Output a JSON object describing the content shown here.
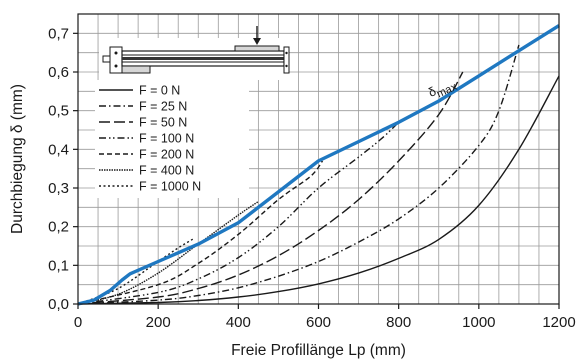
{
  "chart_data": {
    "type": "line",
    "xlabel": "Freie Profillänge Lp (mm)",
    "ylabel": "Durchbiegung δ (mm)",
    "xlim": [
      0,
      1200
    ],
    "ylim": [
      0,
      0.75
    ],
    "x_ticks": [
      0,
      200,
      400,
      600,
      800,
      1000,
      1200
    ],
    "x_tick_labels": [
      "0",
      "200",
      "400",
      "600",
      "800",
      "1000",
      "1200"
    ],
    "y_ticks": [
      0,
      0.1,
      0.2,
      0.3,
      0.4,
      0.5,
      0.6,
      0.7
    ],
    "y_tick_labels": [
      "0,0",
      "0,1",
      "0,2",
      "0,3",
      "0,4",
      "0,5",
      "0,6",
      "0,7"
    ],
    "grid": true,
    "legend_position": "top-left",
    "colors": {
      "max_line": "#1f78c1",
      "curves": "#1a1a1a",
      "grid": "#9a9a9a"
    },
    "max_curve": {
      "annotation_main": "δ",
      "annotation_sub": "max",
      "annotation_at": [
        880,
        0.535
      ],
      "x": [
        0,
        40,
        80,
        110,
        130,
        200,
        300,
        400,
        500,
        600,
        700,
        800,
        900,
        1000,
        1100,
        1200
      ],
      "y": [
        0.0,
        0.01,
        0.035,
        0.062,
        0.078,
        0.11,
        0.155,
        0.21,
        0.29,
        0.37,
        0.42,
        0.47,
        0.525,
        0.59,
        0.655,
        0.72
      ]
    },
    "series": [
      {
        "name": "F = 0 N",
        "dash": "solid",
        "x": [
          0,
          200,
          300,
          400,
          500,
          600,
          700,
          800,
          900,
          1000,
          1100,
          1200
        ],
        "y": [
          0.0,
          0.004,
          0.009,
          0.018,
          0.032,
          0.052,
          0.08,
          0.118,
          0.167,
          0.255,
          0.4,
          0.59
        ]
      },
      {
        "name": "F = 25 N",
        "dash": "dashdot",
        "x": [
          0,
          200,
          300,
          400,
          500,
          600,
          700,
          800,
          900,
          1000,
          1050,
          1100
        ],
        "y": [
          0.0,
          0.01,
          0.022,
          0.042,
          0.072,
          0.11,
          0.16,
          0.22,
          0.3,
          0.41,
          0.5,
          0.67
        ]
      },
      {
        "name": "F = 50 N",
        "dash": "longdash",
        "x": [
          0,
          200,
          300,
          400,
          500,
          600,
          700,
          800,
          900,
          960
        ],
        "y": [
          0.0,
          0.018,
          0.04,
          0.075,
          0.125,
          0.19,
          0.27,
          0.37,
          0.49,
          0.6
        ]
      },
      {
        "name": "F = 100 N",
        "dash": "dashdotdot",
        "x": [
          0,
          200,
          300,
          400,
          500,
          600,
          700,
          760,
          800
        ],
        "y": [
          0.0,
          0.03,
          0.065,
          0.12,
          0.2,
          0.3,
          0.38,
          0.43,
          0.47
        ]
      },
      {
        "name": "F = 200 N",
        "dash": "dashed",
        "x": [
          0,
          200,
          300,
          400,
          500,
          580,
          610
        ],
        "y": [
          0.0,
          0.05,
          0.105,
          0.18,
          0.27,
          0.33,
          0.37
        ]
      },
      {
        "name": "F = 400 N",
        "dash": "densedot",
        "x": [
          0,
          100,
          200,
          300,
          400,
          450
        ],
        "y": [
          0.0,
          0.025,
          0.08,
          0.155,
          0.23,
          0.265
        ]
      },
      {
        "name": "F = 1000 N",
        "dash": "dotted",
        "x": [
          0,
          100,
          200,
          250,
          290
        ],
        "y": [
          0.0,
          0.04,
          0.11,
          0.145,
          0.17
        ]
      }
    ]
  }
}
